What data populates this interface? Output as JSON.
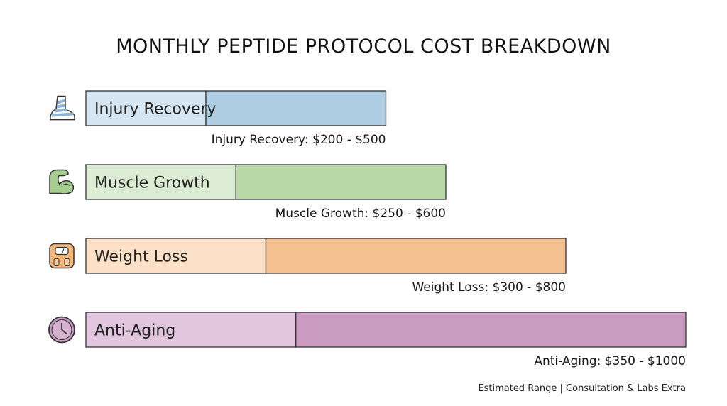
{
  "title": "MONTHLY PEPTIDE PROTOCOL COST BREAKDOWN",
  "footnote": "Estimated Range | Consultation & Labs Extra",
  "chart_data": {
    "type": "bar",
    "orientation": "horizontal",
    "subtype": "range",
    "categories": [
      "Injury Recovery",
      "Muscle Growth",
      "Weight Loss",
      "Anti-Aging"
    ],
    "ranges": [
      {
        "category": "Injury Recovery",
        "low": 200,
        "high": 500,
        "label": "Injury Recovery: $200 - $500",
        "icon": "bandaged-foot-icon",
        "color_light": "#d5e5f2",
        "color_dark": "#aecde3"
      },
      {
        "category": "Muscle Growth",
        "low": 250,
        "high": 600,
        "label": "Muscle Growth: $250 - $600",
        "icon": "flexed-bicep-icon",
        "color_light": "#dcebd4",
        "color_dark": "#b8d8a6"
      },
      {
        "category": "Weight Loss",
        "low": 300,
        "high": 800,
        "label": "Weight Loss: $300 - $800",
        "icon": "bathroom-scale-icon",
        "color_light": "#fce1c8",
        "color_dark": "#f5c08f"
      },
      {
        "category": "Anti-Aging",
        "low": 350,
        "high": 1000,
        "label": "Anti-Aging: $350 - $1000",
        "icon": "clock-icon",
        "color_light": "#e1c6de",
        "color_dark": "#c99bc0"
      }
    ],
    "xlim": [
      0,
      1000
    ],
    "xlabel": "",
    "ylabel": "",
    "grid": false,
    "legend": "none"
  }
}
